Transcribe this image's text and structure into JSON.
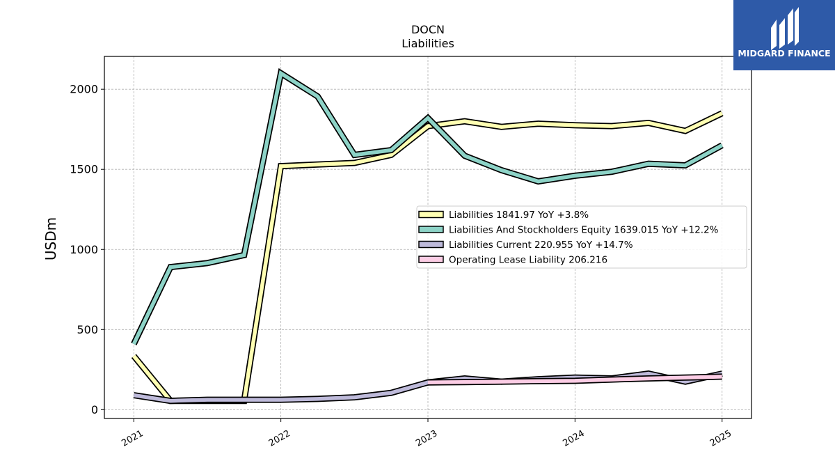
{
  "chart_data": {
    "type": "line",
    "title": "DOCN",
    "subtitle": "Liabilities",
    "ylabel": "USDm",
    "ylim": [
      -55,
      2205
    ],
    "yticks": [
      0,
      500,
      1000,
      1500,
      2000
    ],
    "xlim": [
      2020.8,
      2025.2
    ],
    "xticks": [
      2021,
      2022,
      2023,
      2024,
      2025
    ],
    "xtick_labels": [
      "2021",
      "2022",
      "2023",
      "2024",
      "2025"
    ],
    "grid": true,
    "legend_position": "center-right",
    "series": [
      {
        "name": "Liabilities",
        "legend_label": "Liabilities  1841.97 YoY +3.8%",
        "color": "#ffffb3",
        "x": [
          2021.0,
          2021.25,
          2021.5,
          2021.75,
          2022.0,
          2022.25,
          2022.5,
          2022.75,
          2023.0,
          2023.25,
          2023.5,
          2023.75,
          2024.0,
          2024.25,
          2024.5,
          2024.75,
          2025.0
        ],
        "values": [
          335,
          55,
          55,
          55,
          1520,
          1530,
          1540,
          1590,
          1770,
          1800,
          1765,
          1785,
          1775,
          1770,
          1790,
          1740,
          1850
        ]
      },
      {
        "name": "Liabilities And Stockholders Equity",
        "legend_label": "Liabilities And Stockholders Equity  1639.015 YoY +12.2%",
        "color": "#8dd3c7",
        "x": [
          2021.0,
          2021.25,
          2021.5,
          2021.75,
          2022.0,
          2022.25,
          2022.5,
          2022.75,
          2023.0,
          2023.25,
          2023.5,
          2023.75,
          2024.0,
          2024.25,
          2024.5,
          2024.75,
          2025.0
        ],
        "values": [
          410,
          890,
          915,
          965,
          2100,
          1955,
          1590,
          1620,
          1820,
          1585,
          1495,
          1425,
          1460,
          1485,
          1535,
          1525,
          1650
        ]
      },
      {
        "name": "Liabilities Current",
        "legend_label": "Liabilities Current  220.955 YoY +14.7%",
        "color": "#bebada",
        "x": [
          2021.0,
          2021.25,
          2021.5,
          2021.75,
          2022.0,
          2022.25,
          2022.5,
          2022.75,
          2023.0,
          2023.25,
          2023.5,
          2023.75,
          2024.0,
          2024.25,
          2024.5,
          2024.75,
          2025.0
        ],
        "values": [
          90,
          55,
          62,
          62,
          62,
          67,
          77,
          105,
          170,
          195,
          175,
          190,
          200,
          195,
          225,
          175,
          225
        ]
      },
      {
        "name": "Operating Lease Liability",
        "legend_label": "Operating Lease Liability  206.216",
        "color": "#fccde5",
        "x": [
          2023.0,
          2023.25,
          2023.5,
          2023.75,
          2024.0,
          2024.25,
          2024.5,
          2024.75,
          2025.0
        ],
        "values": [
          170,
          172,
          175,
          178,
          180,
          188,
          195,
          200,
          206
        ]
      }
    ]
  },
  "watermark": {
    "brand_text": "MIDGARD FINANCE",
    "background_color": "#2e5aa8"
  }
}
